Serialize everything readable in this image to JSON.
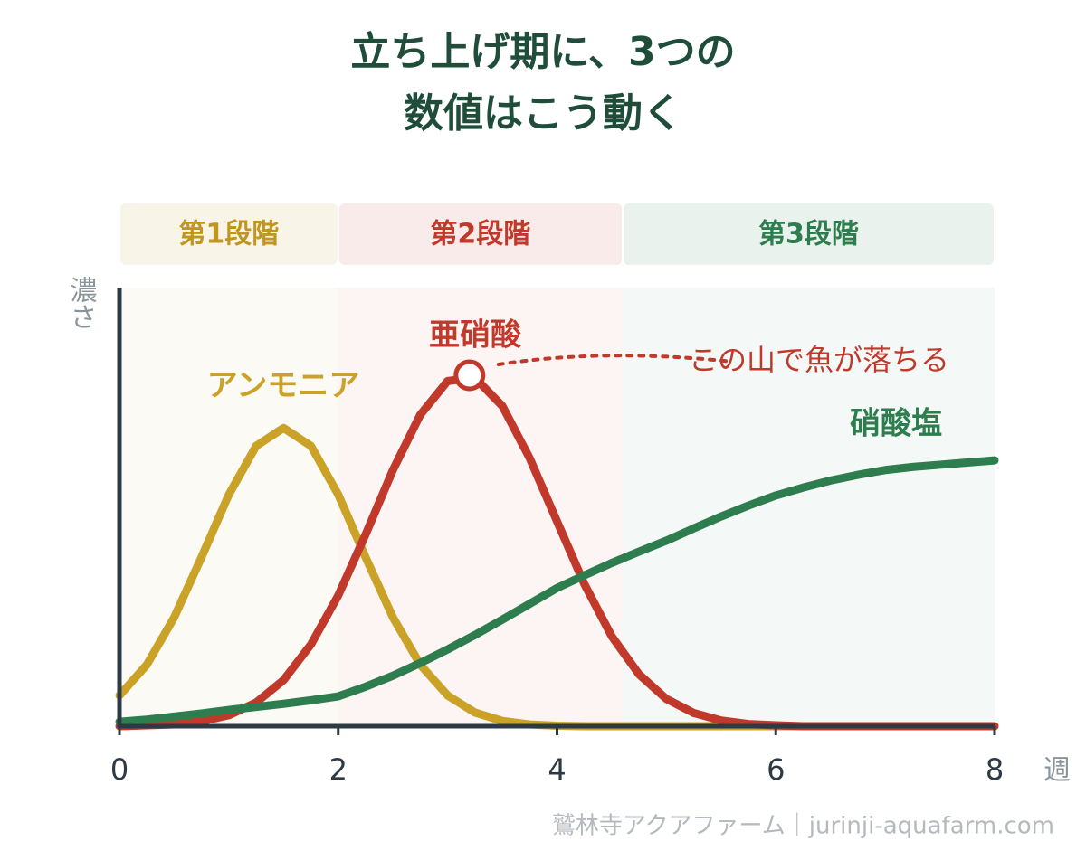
{
  "chart_data": {
    "type": "line",
    "title_lines": [
      "立ち上げ期に、3つの",
      "数値はこう動く"
    ],
    "y_label": "濃さ",
    "x_label": "週",
    "xlim": [
      0,
      8
    ],
    "xticks": [
      0,
      2,
      4,
      6,
      8
    ],
    "ylim": [
      0,
      100
    ],
    "stages": [
      {
        "label": "第1段階",
        "start": 0,
        "end": 2,
        "color": "#c0961f"
      },
      {
        "label": "第2段階",
        "start": 2,
        "end": 4.6,
        "color": "#c0392b"
      },
      {
        "label": "第3段階",
        "start": 4.6,
        "end": 8,
        "color": "#2e7d4f"
      }
    ],
    "x": [
      0,
      0.25,
      0.5,
      0.75,
      1,
      1.25,
      1.5,
      1.75,
      2,
      2.25,
      2.5,
      2.75,
      3,
      3.25,
      3.5,
      3.75,
      4,
      4.25,
      4.5,
      4.75,
      5,
      5.25,
      5.5,
      5.75,
      6,
      6.25,
      6.5,
      6.75,
      7,
      7.25,
      7.5,
      7.75,
      8
    ],
    "series": [
      {
        "name": "アンモニア",
        "color": "#c9a227",
        "values": [
          7.0,
          14.0,
          24.8,
          38.5,
          52.8,
          63.9,
          68,
          63.9,
          52.8,
          38.5,
          24.8,
          14.0,
          7.0,
          3.1,
          1.2,
          0.4,
          0.1,
          0,
          0,
          0,
          0,
          0,
          0,
          0,
          0,
          0,
          0,
          0,
          0,
          0,
          0,
          0,
          0
        ]
      },
      {
        "name": "亜硝酸",
        "color": "#c0392b",
        "values": [
          0,
          0.2,
          0.4,
          1.1,
          2.5,
          5.4,
          10.5,
          18.6,
          29.8,
          43.7,
          58.4,
          71.0,
          78.7,
          79.4,
          73.0,
          61.1,
          46.7,
          32.4,
          20.5,
          11.8,
          6.2,
          3.0,
          1.3,
          0.5,
          0.2,
          0,
          0,
          0,
          0,
          0,
          0,
          0,
          0
        ]
      },
      {
        "name": "硝酸塩",
        "color": "#2e7d4f",
        "values": [
          1.0,
          1.5,
          2.2,
          2.9,
          3.7,
          4.4,
          5.1,
          5.9,
          6.8,
          9.0,
          11.5,
          14.4,
          17.5,
          20.8,
          24.3,
          27.9,
          31.5,
          34.4,
          37.2,
          39.8,
          42.3,
          45.1,
          47.8,
          50.3,
          52.6,
          54.4,
          56.0,
          57.3,
          58.4,
          59.1,
          59.6,
          60.1,
          60.6
        ]
      }
    ],
    "peak_annotation": {
      "x": 3.2,
      "y": 80,
      "label": "この山で魚が落ちる"
    },
    "footer": "鷲林寺アクアファーム｜jurinji-aquafarm.com"
  }
}
